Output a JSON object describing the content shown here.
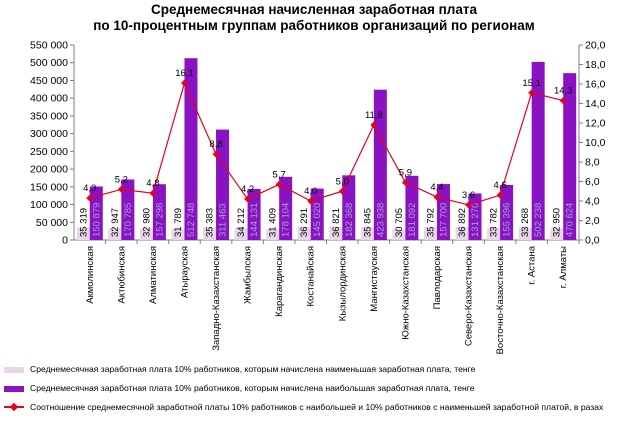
{
  "title_line1": "Среднемесячная начисленная заработная плата",
  "title_line2": "по 10-процентным группам работников организаций по регионам",
  "colors": {
    "min_bar": "#e8d5ea",
    "max_bar": "#8a12c4",
    "ratio_line": "#e8001c"
  },
  "chart_data": {
    "type": "bar",
    "categories": [
      "Акмолинская",
      "Актюбинская",
      "Алматинская",
      "Атырауская",
      "Западно-Казахстанская",
      "Жамбылская",
      "Карагандинская",
      "Костанайская",
      "Кызылординская",
      "Мангистауская",
      "Южно-Казахстанская",
      "Павлодарская",
      "Северо-Казахстанская",
      "Восточно-Казахстанская",
      "г. Астана",
      "г. Алматы"
    ],
    "series": [
      {
        "name": "Среднемесячная заработная плата 10% работников, которым начислена наименьшая заработная плата, тенге",
        "axis": "left",
        "values": [
          35319,
          32947,
          32980,
          31789,
          35383,
          34212,
          31409,
          36291,
          36821,
          35845,
          30705,
          35792,
          36892,
          33782,
          33268,
          32950
        ],
        "labels": [
          "35 319",
          "32 947",
          "32 980",
          "31 789",
          "35 383",
          "34 212",
          "31 409",
          "36 291",
          "36 821",
          "35 845",
          "30 705",
          "35 792",
          "36 892",
          "33 782",
          "33 268",
          "32 950"
        ]
      },
      {
        "name": "Среднемесячная заработная плата 10% работников, которым начислена наибольшая заработная плата, тенге",
        "axis": "left",
        "values": [
          150879,
          170785,
          157298,
          512748,
          311463,
          144131,
          178104,
          145020,
          182368,
          423938,
          181092,
          157700,
          131270,
          155396,
          502238,
          470624
        ],
        "labels": [
          "150 879",
          "170 785",
          "157 298",
          "512 748",
          "311 463",
          "144 131",
          "178 104",
          "145 020",
          "182 368",
          "423 938",
          "181 092",
          "157 700",
          "131 270",
          "155 396",
          "502 238",
          "470 624"
        ]
      },
      {
        "name": "Соотношение среднемесячной заработной платы 10% работников с наибольшей и 10% работников с наименьшей заработной платой, в разах",
        "axis": "right",
        "type": "line",
        "values": [
          4.3,
          5.2,
          4.8,
          16.1,
          8.8,
          4.2,
          5.7,
          4.0,
          5.0,
          11.8,
          5.9,
          4.4,
          3.6,
          4.6,
          15.1,
          14.3
        ],
        "labels": [
          "4,3",
          "5,2",
          "4,8",
          "16,1",
          "8,8",
          "4,2",
          "5,7",
          "4,0",
          "5,0",
          "11,8",
          "5,9",
          "4,4",
          "3,6",
          "4,6",
          "15,1",
          "14,3"
        ]
      }
    ],
    "y_left": {
      "min": 0,
      "max": 550000,
      "step": 50000,
      "ticks": [
        "0",
        "50 000",
        "100 000",
        "150 000",
        "200 000",
        "250 000",
        "300 000",
        "350 000",
        "400 000",
        "450 000",
        "500 000",
        "550 000"
      ]
    },
    "y_right": {
      "min": 0,
      "max": 20,
      "step": 2,
      "ticks": [
        "0,0",
        "2,0",
        "4,0",
        "6,0",
        "8,0",
        "10,0",
        "12,0",
        "14,0",
        "16,0",
        "18,0",
        "20,0"
      ]
    },
    "grid": false,
    "legend": "bottom"
  }
}
